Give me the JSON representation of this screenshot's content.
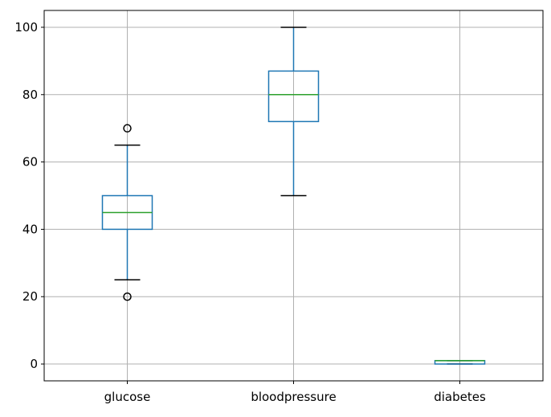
{
  "chart_data": {
    "type": "box",
    "categories": [
      "glucose",
      "bloodpressure",
      "diabetes"
    ],
    "boxes": [
      {
        "name": "glucose",
        "whisker_low": 25,
        "q1": 40,
        "median": 45,
        "q3": 50,
        "whisker_high": 65,
        "outliers": [
          20,
          70
        ]
      },
      {
        "name": "bloodpressure",
        "whisker_low": 50,
        "q1": 72,
        "median": 80,
        "q3": 87,
        "whisker_high": 100,
        "outliers": []
      },
      {
        "name": "diabetes",
        "whisker_low": 0,
        "q1": 0,
        "median": 1,
        "q3": 1,
        "whisker_high": 1,
        "outliers": []
      }
    ],
    "yticks": [
      0,
      20,
      40,
      60,
      80,
      100
    ],
    "ylim": [
      -5,
      105
    ],
    "grid": true,
    "colors": {
      "box": "#1f77b4",
      "median": "#2ca02c",
      "whisker": "#1f77b4",
      "cap": "#000000",
      "outlier": "#000000",
      "grid": "#b0b0b0"
    },
    "title": "",
    "xlabel": "",
    "ylabel": ""
  }
}
